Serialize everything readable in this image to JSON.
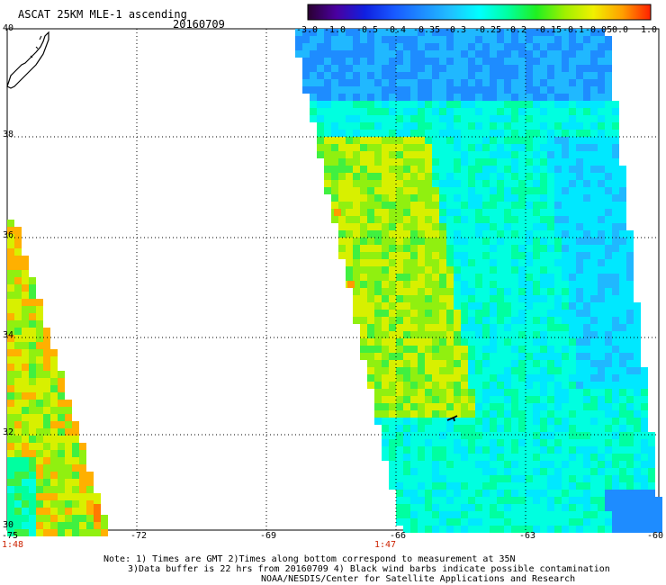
{
  "header": {
    "title": "ASCAT 25KM MLE-1 ascending",
    "date": "20160709"
  },
  "colorbar": {
    "labels": [
      "-3.0",
      "-1.0",
      "-0.5",
      "-0.4",
      "-0.35",
      "-0.3",
      "-0.25",
      "-0.2",
      "-0.15",
      "-0.1",
      "-0.05",
      "0.0",
      "1.0"
    ],
    "colors": [
      "#2a0030",
      "#4a00a0",
      "#1020e0",
      "#1858ff",
      "#1e8cff",
      "#20c0ff",
      "#00ffff",
      "#00ffa0",
      "#20f020",
      "#a0f000",
      "#f0f000",
      "#ffa000",
      "#ff2000"
    ]
  },
  "map": {
    "lat_labels": [
      "40",
      "38",
      "36",
      "34",
      "32",
      "30"
    ],
    "lon_labels": [
      "-75",
      "-72",
      "-69",
      "-66",
      "-63",
      "-60"
    ],
    "time_labels": [
      "1:48",
      "1:47"
    ],
    "swaths": [
      {
        "name": "west swath",
        "pass_time": "1:48"
      },
      {
        "name": "east swath",
        "pass_time": "1:47"
      }
    ]
  },
  "notes": {
    "line1": "Note: 1) Times are GMT 2)Times along bottom correspond to measurement at 35N",
    "line2": "3)Data buffer is 22 hrs from 20160709 4) Black wind barbs indicate possible contamination",
    "line3": "NOAA/NESDIS/Center for Satellite Applications and Research"
  }
}
